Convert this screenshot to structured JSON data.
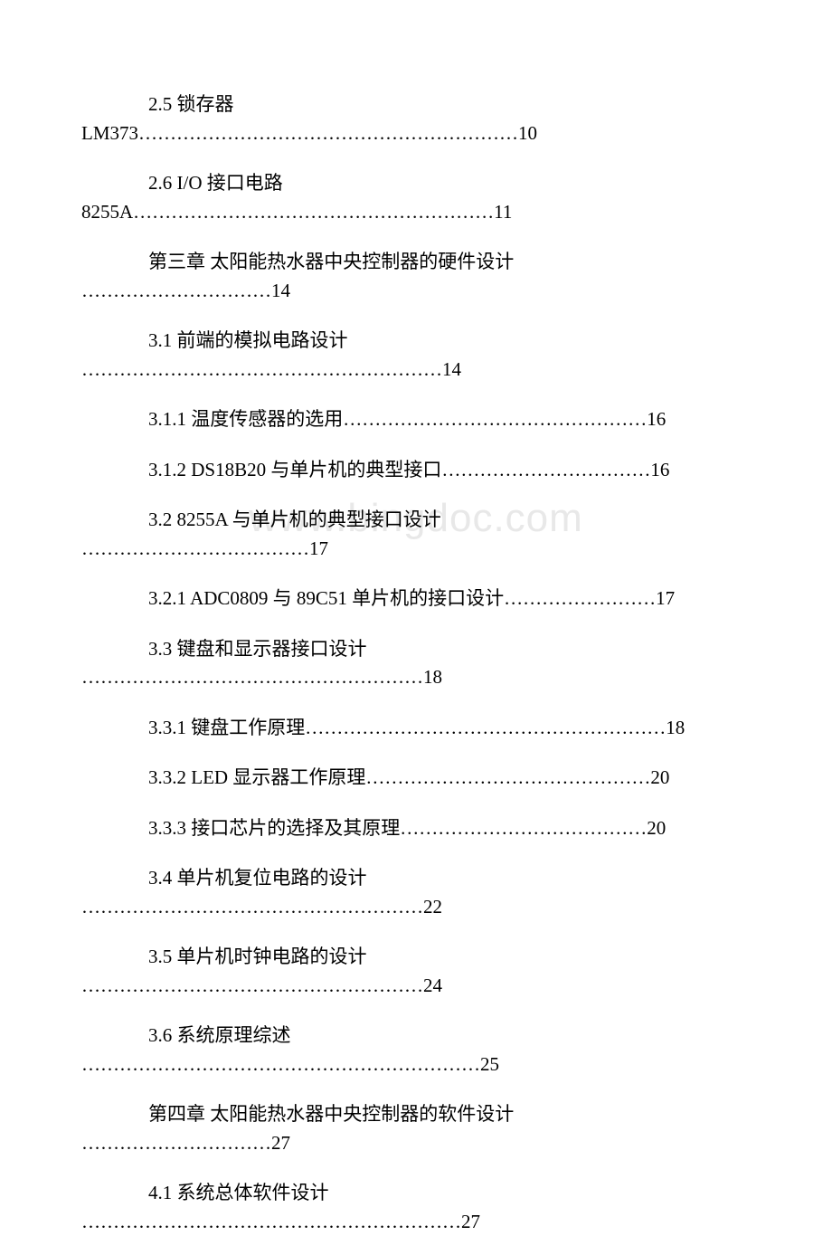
{
  "watermark": "www.bingdoc.com",
  "text_color": "#000000",
  "background_color": "#ffffff",
  "watermark_color": "#e8e8e8",
  "font_size": 21,
  "watermark_font_size": 44,
  "toc": {
    "entries": [
      {
        "line1": "2.5 锁存器",
        "line2": "LM373……………………………………………………10"
      },
      {
        "line1": "2.6 I/O 接口电路",
        "line2": "8255A…………………………………………………11"
      },
      {
        "line1": "第三章 太阳能热水器中央控制器的硬件设计",
        "line2": "…………………………14"
      },
      {
        "line1": "3.1 前端的模拟电路设计",
        "line2": "…………………………………………………14"
      },
      {
        "single": "3.1.1 温度传感器的选用…………………………………………16"
      },
      {
        "single": "3.1.2 DS18B20 与单片机的典型接口……………………………16"
      },
      {
        "line1": "3.2 8255A 与单片机的典型接口设计",
        "line2": "………………………………17"
      },
      {
        "single": "3.2.1 ADC0809 与 89C51 单片机的接口设计……………………17"
      },
      {
        "line1": "3.3 键盘和显示器接口设计",
        "line2": "………………………………………………18"
      },
      {
        "single": "3.3.1 键盘工作原理…………………………………………………18"
      },
      {
        "single": "3.3.2 LED 显示器工作原理………………………………………20"
      },
      {
        "single": "3.3.3 接口芯片的选择及其原理…………………………………20"
      },
      {
        "line1": "3.4 单片机复位电路的设计",
        "line2": "………………………………………………22"
      },
      {
        "line1": "3.5 单片机时钟电路的设计",
        "line2": "………………………………………………24"
      },
      {
        "line1": "3.6 系统原理综述",
        "line2": "………………………………………………………25"
      },
      {
        "line1": "第四章 太阳能热水器中央控制器的软件设计",
        "line2": "…………………………27"
      },
      {
        "line1": "4.1 系统总体软件设计",
        "line2": "……………………………………………………27"
      }
    ]
  }
}
